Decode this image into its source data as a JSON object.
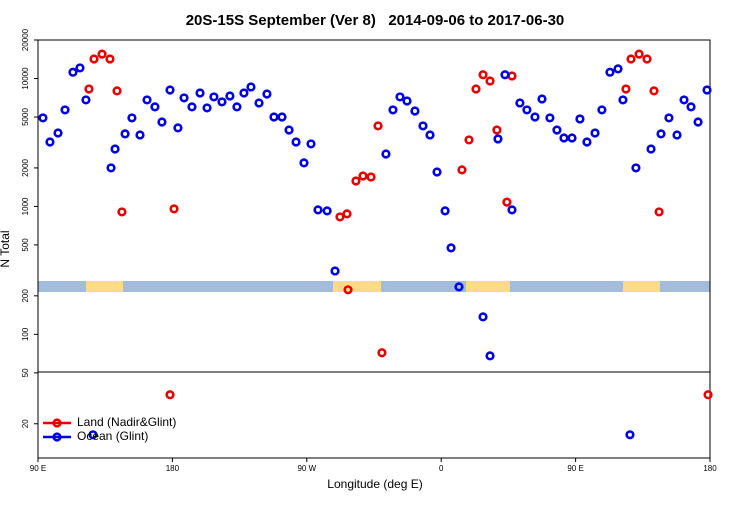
{
  "chart_data": {
    "type": "scatter",
    "title": "20S-15S September (Ver 8)   2014-09-06 to 2017-06-30",
    "x_label": "Longitude (deg E)",
    "y_label": "N Total",
    "log_y": true,
    "legend": "lower left",
    "xlim": [
      90,
      540
    ],
    "ylim": [
      10.8,
      20000
    ],
    "xticks": [
      {
        "value": 90,
        "label": "90 E"
      },
      {
        "value": 180,
        "label": "180"
      },
      {
        "value": 270,
        "label": "90 W"
      },
      {
        "value": 360,
        "label": "0"
      },
      {
        "value": 450,
        "label": "90 E"
      },
      {
        "value": 540,
        "label": "180"
      }
    ],
    "yticks": [
      20,
      50,
      100,
      200,
      500,
      1000,
      2000,
      5000,
      10000,
      20000
    ],
    "series": [
      {
        "name": "Land (Nadir&Glint)",
        "color": "#e60000",
        "x": [
          124.1,
          127.5,
          132.9,
          138.2,
          142.9,
          146.2,
          178.4,
          181.1,
          292.2,
          296.9,
          297.6,
          302.9,
          307.6,
          313.0,
          317.7,
          320.3,
          373.9,
          378.6,
          383.3,
          388.0,
          392.7,
          397.3,
          404.0,
          407.4,
          483.7,
          487.1,
          492.5,
          497.8,
          502.5,
          505.9,
          538.7
        ],
        "values": [
          8280,
          14200,
          15500,
          14200,
          8000,
          906,
          33.7,
          957,
          828,
          875,
          223,
          1580,
          1730,
          1700,
          4260,
          71.8,
          1930,
          3310,
          8280,
          10700,
          9570,
          3960,
          1080,
          10470,
          8280,
          14200,
          15500,
          14200,
          8000,
          906,
          33.7
        ]
      },
      {
        "name": "Ocean (Glint)",
        "color": "#0000e6",
        "x": [
          93.3,
          98.0,
          103.4,
          108.1,
          113.4,
          118.1,
          122.1,
          126.8,
          138.9,
          141.6,
          148.3,
          152.9,
          158.3,
          163.0,
          168.3,
          173.0,
          178.4,
          183.7,
          187.8,
          193.1,
          198.5,
          203.2,
          207.8,
          213.2,
          218.5,
          223.2,
          227.9,
          232.6,
          238.0,
          243.3,
          248.0,
          253.4,
          258.1,
          262.8,
          268.1,
          272.8,
          277.5,
          283.6,
          288.9,
          323.0,
          327.7,
          332.4,
          337.1,
          342.4,
          347.8,
          352.5,
          357.2,
          362.6,
          366.6,
          371.9,
          388.0,
          392.7,
          398.0,
          402.7,
          407.4,
          412.7,
          417.4,
          422.8,
          427.5,
          432.8,
          437.5,
          442.2,
          447.6,
          452.9,
          457.6,
          463.0,
          467.6,
          473.0,
          478.4,
          481.7,
          486.4,
          490.4,
          500.5,
          507.2,
          512.5,
          517.9,
          522.6,
          527.3,
          532.0,
          538.0
        ],
        "values": [
          4920,
          3190,
          3750,
          5680,
          11200,
          12100,
          6800,
          16.4,
          2000,
          2810,
          3690,
          4920,
          3620,
          6800,
          6000,
          4570,
          8130,
          4110,
          7050,
          6000,
          7710,
          5890,
          7180,
          6560,
          7300,
          6000,
          7710,
          8590,
          6440,
          7570,
          5000,
          5000,
          3960,
          3190,
          2190,
          3080,
          940,
          923,
          313,
          2570,
          5680,
          7180,
          6670,
          5570,
          4260,
          3620,
          1860,
          923,
          474,
          235,
          137,
          67.9,
          3370,
          10700,
          940,
          6440,
          5680,
          5000,
          6920,
          4920,
          3960,
          3430,
          3430,
          4830,
          3190,
          3750,
          5680,
          11200,
          11900,
          6800,
          16.4,
          2000,
          2810,
          3690,
          4920,
          3620,
          6800,
          6000,
          4570,
          8130
        ]
      }
    ]
  }
}
